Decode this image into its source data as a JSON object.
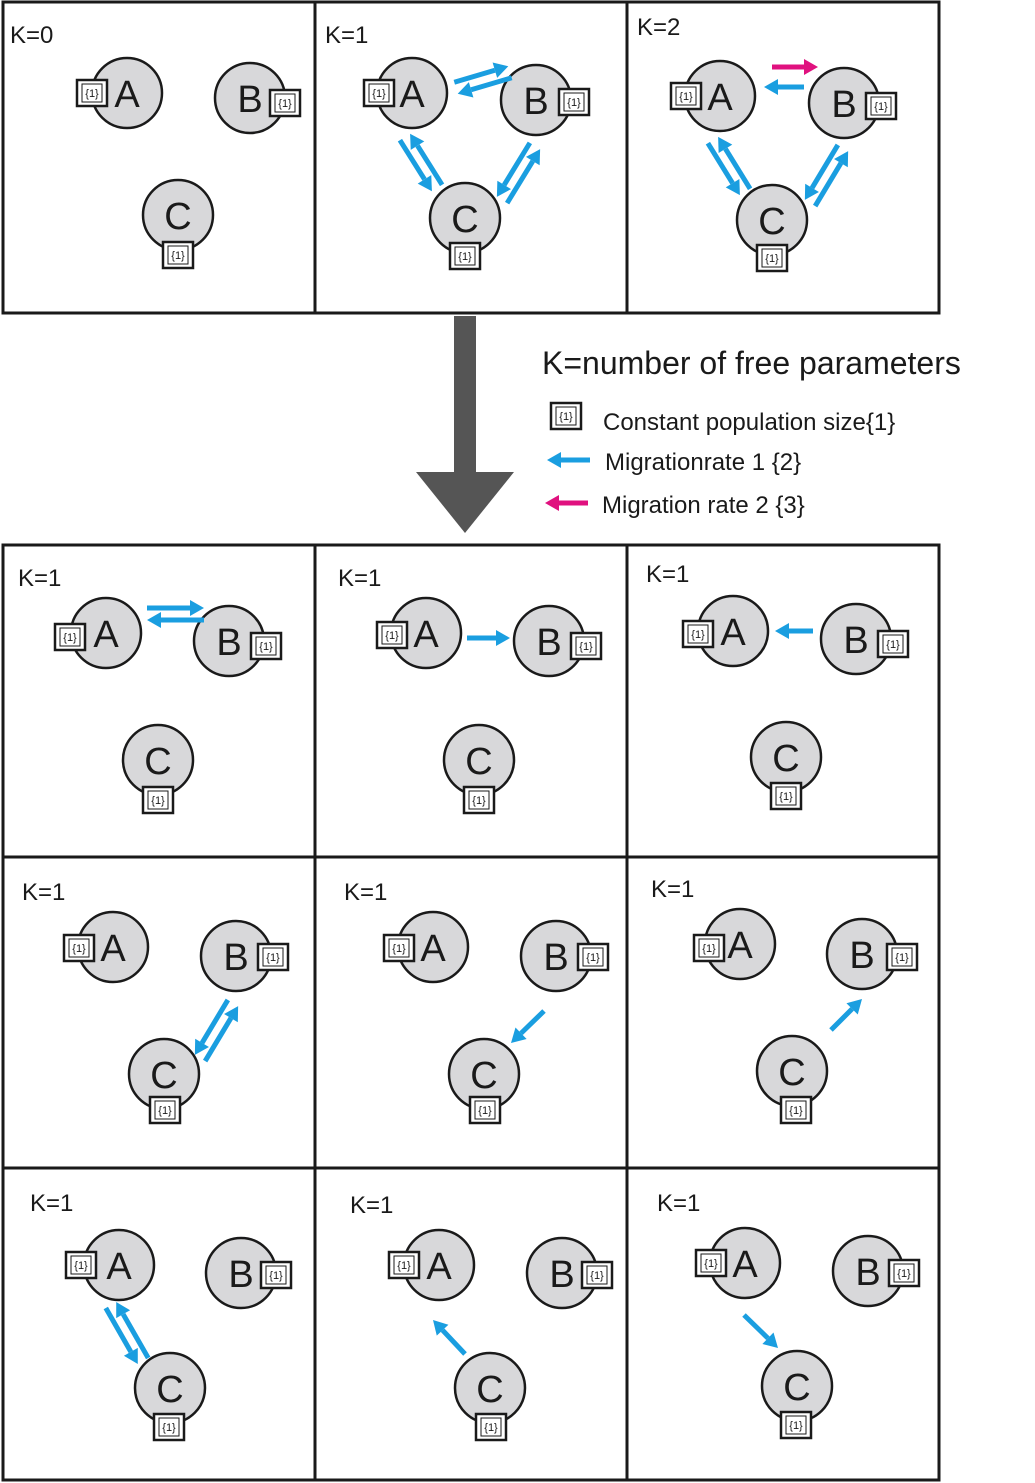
{
  "colors": {
    "migration_rate_1": "#1a9ee0",
    "migration_rate_2": "#e0117f",
    "population_fill": "#d8d8da",
    "flow_arrow": "#555555"
  },
  "population_size_label": "{1}",
  "populations": [
    "A",
    "B",
    "C"
  ],
  "legend": {
    "title": "K=number of free parameters",
    "items": [
      {
        "symbol": "box",
        "label": "Constant population size{1}"
      },
      {
        "symbol": "arrow-rate-1",
        "label": "Migrationrate 1 {2}"
      },
      {
        "symbol": "arrow-rate-2",
        "label": "Migration rate 2 {3}"
      }
    ]
  },
  "top_models": [
    {
      "k_label": "K=0",
      "migration": "none"
    },
    {
      "k_label": "K=1",
      "migration": "all pairs bidirectional, rate 1"
    },
    {
      "k_label": "K=2",
      "migration": "all pairs bidirectional; A to B rate 2, others rate 1"
    }
  ],
  "bottom_models": [
    {
      "k_label": "K=1",
      "migration": "A <-> B"
    },
    {
      "k_label": "K=1",
      "migration": "A -> B"
    },
    {
      "k_label": "K=1",
      "migration": "B -> A"
    },
    {
      "k_label": "K=1",
      "migration": "B <-> C"
    },
    {
      "k_label": "K=1",
      "migration": "B -> C"
    },
    {
      "k_label": "K=1",
      "migration": "C -> B"
    },
    {
      "k_label": "K=1",
      "migration": "A <-> C"
    },
    {
      "k_label": "K=1",
      "migration": "C -> A"
    },
    {
      "k_label": "K=1",
      "migration": "A -> C"
    }
  ]
}
